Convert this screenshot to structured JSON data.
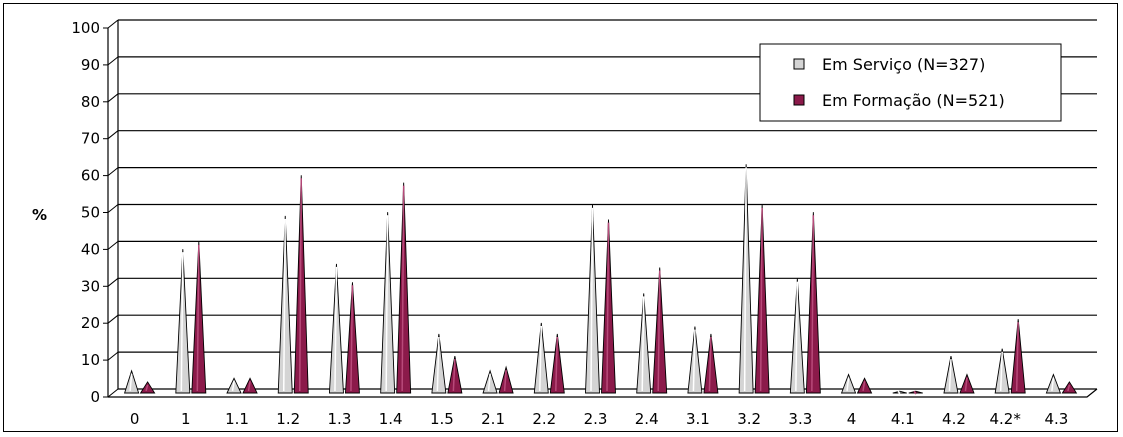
{
  "chart_data": {
    "type": "bar",
    "title": "",
    "xlabel": "",
    "ylabel": "%",
    "ylim": [
      0,
      100
    ],
    "yticks": [
      0,
      10,
      20,
      30,
      40,
      50,
      60,
      70,
      80,
      90,
      100
    ],
    "categories": [
      "0",
      "1",
      "1.1",
      "1.2",
      "1.3",
      "1.4",
      "1.5",
      "2.1",
      "2.2",
      "2.3",
      "2.4",
      "3.1",
      "3.2",
      "3.3",
      "4",
      "4.1",
      "4.2",
      "4.2*",
      "4.3"
    ],
    "series": [
      {
        "name": "Em Serviço (N=327)",
        "color": "#d4d4d4",
        "values": [
          6,
          39,
          4,
          48,
          35,
          49,
          16,
          6,
          19,
          51,
          27,
          18,
          62,
          31,
          5,
          0.5,
          10,
          12,
          5
        ]
      },
      {
        "name": "Em Formação (N=521)",
        "color": "#8b1a4a",
        "values": [
          3,
          41,
          4,
          59,
          30,
          57,
          10,
          7,
          16,
          47,
          34,
          16,
          51,
          49,
          4,
          0.5,
          5,
          20,
          3
        ]
      }
    ],
    "grid": true,
    "legend": "top-right"
  }
}
